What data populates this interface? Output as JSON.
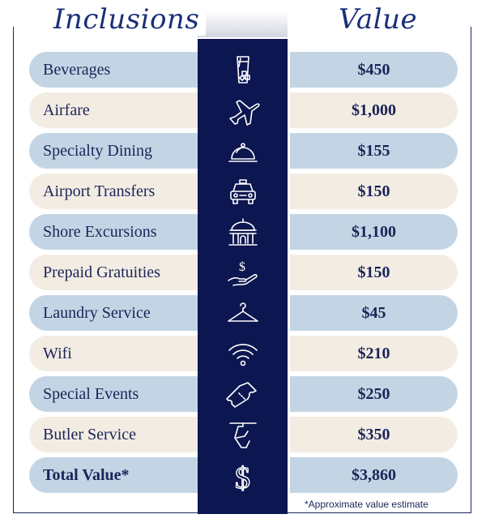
{
  "headings": {
    "inclusions": "Inclusions",
    "value": "Value"
  },
  "rows": [
    {
      "label": "Beverages",
      "value": "$450",
      "icon": "beverage-glass-icon"
    },
    {
      "label": "Airfare",
      "value": "$1,000",
      "icon": "airplane-icon"
    },
    {
      "label": "Specialty Dining",
      "value": "$155",
      "icon": "cloche-icon"
    },
    {
      "label": "Airport Transfers",
      "value": "$150",
      "icon": "taxi-icon"
    },
    {
      "label": "Shore Excursions",
      "value": "$1,100",
      "icon": "landmark-icon"
    },
    {
      "label": "Prepaid Gratuities",
      "value": "$150",
      "icon": "hand-dollar-icon"
    },
    {
      "label": "Laundry Service",
      "value": "$45",
      "icon": "hanger-icon"
    },
    {
      "label": "Wifi",
      "value": "$210",
      "icon": "wifi-icon"
    },
    {
      "label": "Special Events",
      "value": "$250",
      "icon": "ticket-icon"
    },
    {
      "label": "Butler Service",
      "value": "$350",
      "icon": "butler-tray-icon"
    }
  ],
  "total": {
    "label": "Total Value*",
    "value": "$3,860",
    "icon": "dollar-icon"
  },
  "footnote": "*Approximate value estimate",
  "colors": {
    "navy": "#0c1650",
    "blue_row": "#c3d5e4",
    "beige_row": "#f3ece3",
    "text": "#1a2458"
  }
}
